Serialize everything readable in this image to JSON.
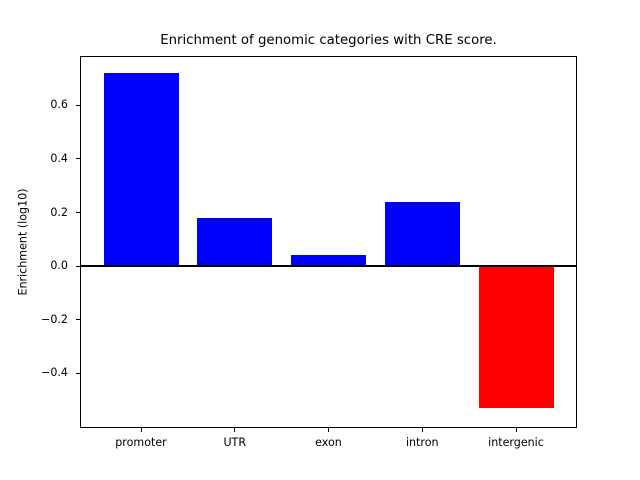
{
  "figure": {
    "background": "#ffffff"
  },
  "chart_data": {
    "type": "bar",
    "title": "Enrichment of genomic categories with CRE score.",
    "xlabel": "",
    "ylabel": "Enrichment (log10)",
    "categories": [
      "promoter",
      "UTR",
      "exon",
      "intron",
      "intergenic"
    ],
    "values": [
      0.72,
      0.18,
      0.04,
      0.24,
      -0.53
    ],
    "bar_colors": [
      "#0000ff",
      "#0000ff",
      "#0000ff",
      "#0000ff",
      "#ff0000"
    ],
    "positive_color": "#0000ff",
    "negative_color": "#ff0000",
    "spine_color": "#000000",
    "axes_facecolor": "#ffffff",
    "ylim": [
      -0.6,
      0.78
    ],
    "xlim": [
      -0.64,
      4.64
    ],
    "bar_width": 0.8,
    "yticks": [
      {
        "value": 0.6,
        "label": "0.6"
      },
      {
        "value": 0.4,
        "label": "0.4"
      },
      {
        "value": 0.2,
        "label": "0.2"
      },
      {
        "value": 0.0,
        "label": "0.0"
      },
      {
        "value": -0.2,
        "label": "−0.2"
      },
      {
        "value": -0.4,
        "label": "−0.4"
      }
    ],
    "zero_line": {
      "y": 0.0,
      "color": "#000000"
    },
    "grid": false,
    "legend": false
  }
}
